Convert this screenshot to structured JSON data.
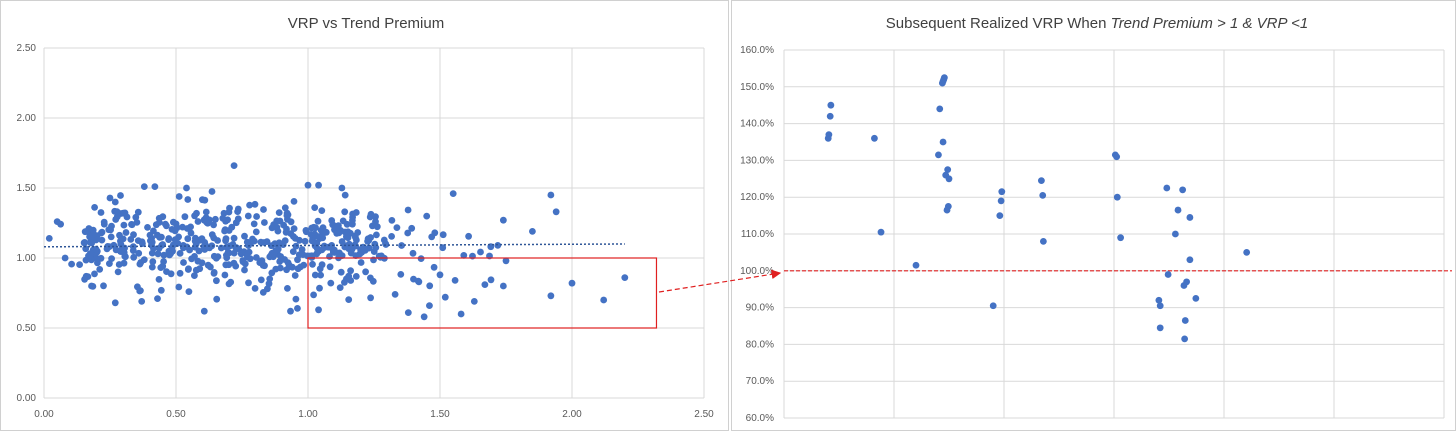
{
  "colors": {
    "marker": "#4472c4",
    "trend": "#2e5597",
    "highlight": "#e02020",
    "grid": "#d9d9d9",
    "panel_border": "#d0d0d0"
  },
  "chart_data": [
    {
      "type": "scatter",
      "title": "VRP vs Trend Premium",
      "xlim": [
        0,
        2.5
      ],
      "ylim": [
        0,
        2.5
      ],
      "xticks": [
        "0.00",
        "0.50",
        "1.00",
        "1.50",
        "2.00",
        "2.50"
      ],
      "yticks": [
        "0.00",
        "0.50",
        "1.00",
        "1.50",
        "2.00",
        "2.50"
      ],
      "grid": true,
      "trendline": {
        "style": "dotted",
        "x": [
          0,
          2.2
        ],
        "y": [
          1.08,
          1.1
        ]
      },
      "highlight_box": {
        "x": [
          1.0,
          2.32
        ],
        "y": [
          0.5,
          1.0
        ]
      },
      "outlier_points": [
        {
          "x": 0.72,
          "y": 1.66
        },
        {
          "x": 1.92,
          "y": 1.45
        },
        {
          "x": 1.94,
          "y": 1.33
        },
        {
          "x": 1.85,
          "y": 1.19
        },
        {
          "x": 2.2,
          "y": 0.86
        },
        {
          "x": 2.12,
          "y": 0.7
        },
        {
          "x": 2.0,
          "y": 0.82
        },
        {
          "x": 1.92,
          "y": 0.73
        },
        {
          "x": 1.75,
          "y": 0.98
        },
        {
          "x": 1.74,
          "y": 0.8
        },
        {
          "x": 1.74,
          "y": 1.27
        },
        {
          "x": 1.55,
          "y": 1.46
        },
        {
          "x": 1.0,
          "y": 1.52
        },
        {
          "x": 1.04,
          "y": 1.52
        },
        {
          "x": 1.44,
          "y": 0.58
        },
        {
          "x": 1.46,
          "y": 0.66
        },
        {
          "x": 1.58,
          "y": 0.6
        },
        {
          "x": 1.38,
          "y": 0.61
        },
        {
          "x": 1.33,
          "y": 0.74
        },
        {
          "x": 1.63,
          "y": 0.69
        },
        {
          "x": 1.67,
          "y": 0.81
        },
        {
          "x": 1.5,
          "y": 0.88
        },
        {
          "x": 1.42,
          "y": 0.83
        },
        {
          "x": 1.52,
          "y": 0.72
        },
        {
          "x": 0.96,
          "y": 0.64
        },
        {
          "x": 1.04,
          "y": 0.63
        },
        {
          "x": 0.27,
          "y": 0.68
        },
        {
          "x": 0.37,
          "y": 0.69
        },
        {
          "x": 0.43,
          "y": 0.71
        },
        {
          "x": 0.18,
          "y": 0.8
        },
        {
          "x": 0.02,
          "y": 1.14
        },
        {
          "x": 0.05,
          "y": 1.26
        },
        {
          "x": 0.08,
          "y": 1.0
        },
        {
          "x": 0.38,
          "y": 1.51
        },
        {
          "x": 0.42,
          "y": 1.51
        },
        {
          "x": 0.27,
          "y": 1.4
        }
      ],
      "cloud": {
        "count": 520,
        "x_range": [
          0.05,
          1.75
        ],
        "y_center": 1.1,
        "y_spread": 0.15,
        "note": "dense cluster of points drawn around the trend line"
      }
    },
    {
      "type": "scatter",
      "title_prefix": "Subsequent Realized VRP When ",
      "title_italic": "Trend Premium > 1 & VRP <1",
      "ylim": [
        0.6,
        1.6
      ],
      "xlim": [
        0,
        1
      ],
      "yticks": [
        "60.0%",
        "70.0%",
        "80.0%",
        "90.0%",
        "100.0%",
        "110.0%",
        "120.0%",
        "130.0%",
        "140.0%",
        "150.0%",
        "160.0%"
      ],
      "x_gridlines": 6,
      "reference_line": {
        "y": 1.0,
        "style": "dashed"
      },
      "points": [
        {
          "x": 0.071,
          "y": 1.45
        },
        {
          "x": 0.07,
          "y": 1.42
        },
        {
          "x": 0.068,
          "y": 1.37
        },
        {
          "x": 0.067,
          "y": 1.36
        },
        {
          "x": 0.137,
          "y": 1.36
        },
        {
          "x": 0.147,
          "y": 1.105
        },
        {
          "x": 0.2,
          "y": 1.015
        },
        {
          "x": 0.24,
          "y": 1.51
        },
        {
          "x": 0.241,
          "y": 1.515
        },
        {
          "x": 0.242,
          "y": 1.52
        },
        {
          "x": 0.243,
          "y": 1.525
        },
        {
          "x": 0.236,
          "y": 1.44
        },
        {
          "x": 0.241,
          "y": 1.35
        },
        {
          "x": 0.234,
          "y": 1.315
        },
        {
          "x": 0.248,
          "y": 1.275
        },
        {
          "x": 0.245,
          "y": 1.26
        },
        {
          "x": 0.25,
          "y": 1.25
        },
        {
          "x": 0.249,
          "y": 1.175
        },
        {
          "x": 0.247,
          "y": 1.165
        },
        {
          "x": 0.317,
          "y": 0.905
        },
        {
          "x": 0.33,
          "y": 1.215
        },
        {
          "x": 0.329,
          "y": 1.19
        },
        {
          "x": 0.327,
          "y": 1.15
        },
        {
          "x": 0.39,
          "y": 1.245
        },
        {
          "x": 0.392,
          "y": 1.205
        },
        {
          "x": 0.393,
          "y": 1.08
        },
        {
          "x": 0.502,
          "y": 1.315
        },
        {
          "x": 0.504,
          "y": 1.31
        },
        {
          "x": 0.505,
          "y": 1.2
        },
        {
          "x": 0.51,
          "y": 1.09
        },
        {
          "x": 0.58,
          "y": 1.225
        },
        {
          "x": 0.582,
          "y": 0.99
        },
        {
          "x": 0.568,
          "y": 0.92
        },
        {
          "x": 0.57,
          "y": 0.905
        },
        {
          "x": 0.57,
          "y": 0.845
        },
        {
          "x": 0.597,
          "y": 1.165
        },
        {
          "x": 0.604,
          "y": 1.22
        },
        {
          "x": 0.593,
          "y": 1.1
        },
        {
          "x": 0.615,
          "y": 1.145
        },
        {
          "x": 0.61,
          "y": 0.97
        },
        {
          "x": 0.606,
          "y": 0.96
        },
        {
          "x": 0.615,
          "y": 1.03
        },
        {
          "x": 0.624,
          "y": 0.925
        },
        {
          "x": 0.608,
          "y": 0.865
        },
        {
          "x": 0.607,
          "y": 0.815
        },
        {
          "x": 0.701,
          "y": 1.05
        }
      ]
    }
  ]
}
